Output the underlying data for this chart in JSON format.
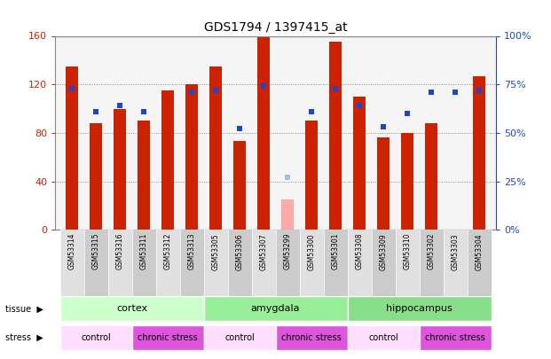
{
  "title": "GDS1794 / 1397415_at",
  "samples": [
    "GSM53314",
    "GSM53315",
    "GSM53316",
    "GSM53311",
    "GSM53312",
    "GSM53313",
    "GSM53305",
    "GSM53306",
    "GSM53307",
    "GSM53299",
    "GSM53300",
    "GSM53301",
    "GSM53308",
    "GSM53309",
    "GSM53310",
    "GSM53302",
    "GSM53303",
    "GSM53304"
  ],
  "count_values": [
    135,
    88,
    100,
    90,
    115,
    120,
    135,
    73,
    160,
    null,
    90,
    155,
    110,
    76,
    80,
    88,
    null,
    127
  ],
  "count_absent": [
    null,
    null,
    null,
    null,
    null,
    null,
    null,
    null,
    null,
    25,
    null,
    null,
    null,
    null,
    null,
    null,
    null,
    null
  ],
  "rank_values": [
    73,
    61,
    64,
    61,
    null,
    71,
    72,
    52,
    74,
    null,
    61,
    73,
    64,
    53,
    60,
    71,
    71,
    72
  ],
  "rank_absent": [
    null,
    null,
    null,
    null,
    null,
    null,
    null,
    null,
    null,
    27,
    null,
    null,
    null,
    null,
    null,
    null,
    null,
    null
  ],
  "tissue_groups": [
    {
      "label": "cortex",
      "start": 0,
      "end": 6,
      "color": "#ccffcc"
    },
    {
      "label": "amygdala",
      "start": 6,
      "end": 12,
      "color": "#99ee99"
    },
    {
      "label": "hippocampus",
      "start": 12,
      "end": 18,
      "color": "#88dd88"
    }
  ],
  "stress_groups": [
    {
      "label": "control",
      "start": 0,
      "end": 3,
      "color": "#ffddff"
    },
    {
      "label": "chronic stress",
      "start": 3,
      "end": 6,
      "color": "#dd55dd"
    },
    {
      "label": "control",
      "start": 6,
      "end": 9,
      "color": "#ffddff"
    },
    {
      "label": "chronic stress",
      "start": 9,
      "end": 12,
      "color": "#dd55dd"
    },
    {
      "label": "control",
      "start": 12,
      "end": 15,
      "color": "#ffddff"
    },
    {
      "label": "chronic stress",
      "start": 15,
      "end": 18,
      "color": "#dd55dd"
    }
  ],
  "ylim_left": [
    0,
    160
  ],
  "ylim_right": [
    0,
    100
  ],
  "left_ticks": [
    0,
    40,
    80,
    120,
    160
  ],
  "right_ticks": [
    0,
    25,
    50,
    75,
    100
  ],
  "bar_color": "#cc2200",
  "bar_absent_color": "#ffaaaa",
  "rank_color": "#2244cc",
  "rank_absent_color": "#aabbdd",
  "bar_width": 0.55,
  "bg_color": "#f5f5f5",
  "xtick_bg": "#dddddd"
}
